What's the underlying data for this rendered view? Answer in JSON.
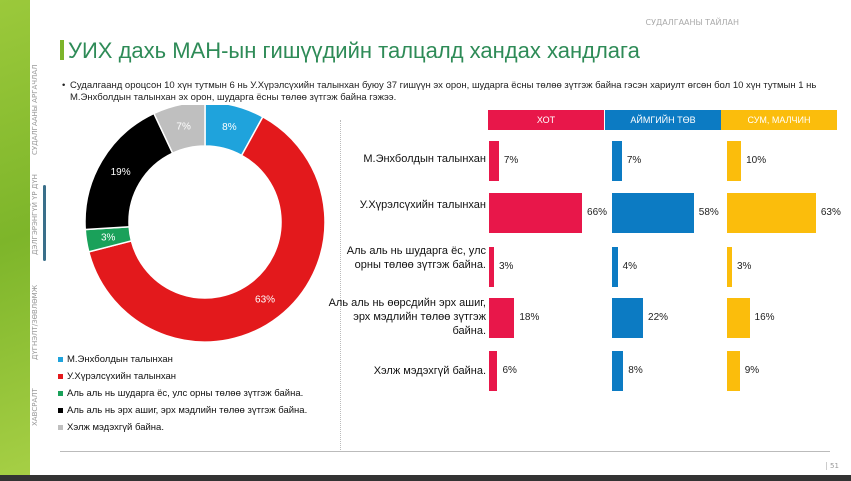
{
  "header": {
    "report_label": "СУДАЛГААНЫ ТАЙЛАН",
    "title": "УИХ дахь МАН-ын гишүүдийн талцалд хандах хандлага",
    "bullet": "Судалгаанд ороцсон 10 хүн тутмын 6 нь У.Хүрэлсүхийн талынхан буюу 37 гишүүн эх орон, шударга ёсны төлөө зүтгэж байна гэсэн хариулт өгсөн бол 10 хүн тутмын 1 нь М.Энхболдын талынхан эх орон, шударга ёсны төлөө зүтгэж байна гэжээ."
  },
  "nav": [
    "СУДАЛГААНЫ АРГАЧЛАЛ",
    "ДЭЛГЭРЭНГҮЙ ҮР ДҮН",
    "ДҮГНЭЛТ/ЗӨВЛӨМЖ",
    "ХАВСРАЛТ"
  ],
  "page_number": "51",
  "chart_data": [
    {
      "type": "pie",
      "donut": true,
      "categories": [
        "М.Энхболдын талынхан",
        "У.Хүрэлсүхийн талынхан",
        "Аль аль нь шударга ёс, улс орны төлөө зүтгэж байна.",
        "Аль аль нь эрх ашиг, эрх мэдлийн төлөө зүтгэж байна.",
        "Хэлж мэдэхгүй байна."
      ],
      "values": [
        8,
        63,
        3,
        19,
        7
      ],
      "labels": [
        "8%",
        "63%",
        "3%",
        "19%",
        "7%"
      ],
      "colors": [
        "#1fa3dc",
        "#e3191c",
        "#1aa15a",
        "#000000",
        "#bfbfbf"
      ],
      "legend": "bottom"
    },
    {
      "type": "bar",
      "orientation": "horizontal",
      "categories": [
        "М.Энхболдын талынхан",
        "У.Хүрэлсүхийн талынхан",
        "Аль аль нь шударга ёс, улс орны төлөө зүтгэж байна.",
        "Аль аль нь өөрсдийн эрх ашиг, эрх мэдлийн төлөө зүтгэж байна.",
        "Хэлж мэдэхгүй байна."
      ],
      "series": [
        {
          "name": "ХОТ",
          "color": "#e8174a",
          "values": [
            7,
            66,
            3,
            18,
            6
          ],
          "labels": [
            "7%",
            "66%",
            "3%",
            "18%",
            "6%"
          ]
        },
        {
          "name": "АЙМГИЙН ТӨВ",
          "color": "#0c7bc3",
          "values": [
            7,
            58,
            4,
            22,
            8
          ],
          "labels": [
            "7%",
            "58%",
            "4%",
            "22%",
            "8%"
          ]
        },
        {
          "name": "СУМ, МАЛЧИН",
          "color": "#fbbd0c",
          "values": [
            10,
            63,
            3,
            16,
            9
          ],
          "labels": [
            "10%",
            "63%",
            "3%",
            "16%",
            "9%"
          ]
        }
      ]
    }
  ]
}
